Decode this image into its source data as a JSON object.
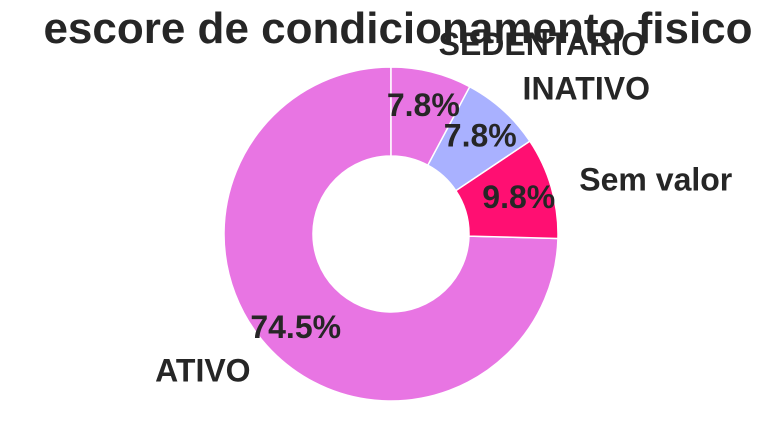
{
  "chart_data": {
    "type": "pie",
    "variant": "donut",
    "title": "escore de condicionamento fisico",
    "slices": [
      {
        "label": "ATIVO",
        "value": 74.5,
        "pct_text": "74.5%",
        "color": "#e875e3"
      },
      {
        "label": "Sem valor",
        "value": 9.8,
        "pct_text": "9.8%",
        "color": "#ff0f72"
      },
      {
        "label": "INATIVO",
        "value": 7.8,
        "pct_text": "7.8%",
        "color": "#a9b1ff"
      },
      {
        "label": "SEDENTARIO",
        "value": 7.8,
        "pct_text": "7.8%",
        "color": "#e875e3"
      }
    ]
  }
}
